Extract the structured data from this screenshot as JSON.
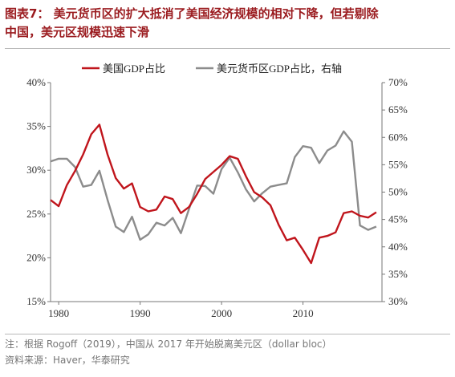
{
  "title_line1": "图表7：  美元货币区的扩大抵消了美国经济规模的相对下降，但若剔除",
  "title_line2": "中国，美元区规模迅速下滑",
  "note": "注：根据 Rogoff（2019），中国从 2017 年开始脱离美元区（dollar bloc）",
  "source": "资料来源：Haver，华泰研究",
  "colors": {
    "us": "#c0151c",
    "usd": "#8c8c8c",
    "axis": "#777777"
  },
  "chart_data": {
    "type": "line",
    "x_ticks": [
      "1980",
      "1990",
      "2000",
      "2010"
    ],
    "left_axis": {
      "ticks": [
        "15%",
        "20%",
        "25%",
        "30%",
        "35%",
        "40%"
      ],
      "ylim": [
        15,
        40
      ]
    },
    "right_axis": {
      "ticks": [
        "30%",
        "35%",
        "40%",
        "45%",
        "50%",
        "55%",
        "60%",
        "65%",
        "70%"
      ],
      "ylim": [
        30,
        70
      ]
    },
    "series": [
      {
        "name": "美国GDP占比",
        "axis": "left",
        "x": [
          1979,
          1980,
          1981,
          1982,
          1983,
          1984,
          1985,
          1986,
          1987,
          1988,
          1989,
          1990,
          1991,
          1992,
          1993,
          1994,
          1995,
          1996,
          1997,
          1998,
          1999,
          2000,
          2001,
          2002,
          2003,
          2004,
          2005,
          2006,
          2007,
          2008,
          2009,
          2010,
          2011,
          2012,
          2013,
          2014,
          2015,
          2016,
          2017,
          2018,
          2019
        ],
        "values": [
          26.6,
          25.9,
          28.3,
          29.9,
          31.8,
          34.1,
          35.2,
          31.8,
          29.1,
          27.9,
          28.5,
          25.8,
          25.3,
          25.5,
          27.0,
          26.7,
          25.1,
          25.8,
          27.3,
          29.0,
          29.8,
          30.6,
          31.6,
          31.3,
          29.3,
          27.5,
          26.9,
          26.0,
          23.8,
          22.0,
          22.3,
          20.9,
          19.4,
          22.3,
          22.5,
          22.9,
          25.1,
          25.3,
          24.8,
          24.6,
          25.2
        ]
      },
      {
        "name": "美元货币区GDP占比，右轴",
        "axis": "right",
        "x": [
          1979,
          1980,
          1981,
          1982,
          1983,
          1984,
          1985,
          1986,
          1987,
          1988,
          1989,
          1990,
          1991,
          1992,
          1993,
          1994,
          1995,
          1996,
          1997,
          1998,
          1999,
          2000,
          2001,
          2002,
          2003,
          2004,
          2005,
          2006,
          2007,
          2008,
          2009,
          2010,
          2011,
          2012,
          2013,
          2014,
          2015,
          2016,
          2017,
          2018,
          2019
        ],
        "values": [
          55.6,
          56.1,
          56.1,
          54.6,
          51.0,
          51.3,
          53.9,
          48.6,
          43.7,
          42.7,
          45.5,
          41.3,
          42.3,
          44.4,
          43.9,
          45.3,
          42.5,
          46.9,
          51.2,
          51.1,
          49.7,
          54.2,
          56.3,
          53.6,
          50.5,
          48.3,
          49.8,
          51.0,
          51.3,
          51.6,
          56.4,
          58.4,
          58.1,
          55.3,
          57.6,
          58.5,
          61.1,
          59.2,
          43.9,
          43.1,
          43.7
        ]
      }
    ]
  }
}
